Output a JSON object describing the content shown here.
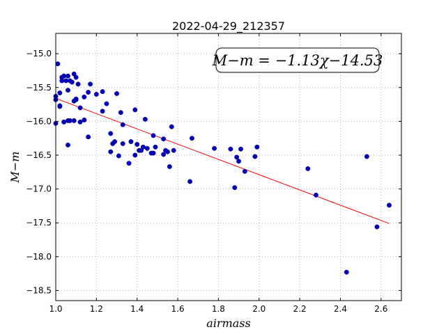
{
  "chart_data": {
    "type": "scatter",
    "title": "2022-04-29_212357",
    "xlabel": "airmass",
    "ylabel": "M−m",
    "xlim": [
      1.0,
      2.7
    ],
    "ylim": [
      -18.65,
      -14.7
    ],
    "y_inverted": true,
    "grid": true,
    "x_ticks": [
      1.0,
      1.2,
      1.4,
      1.6,
      1.8,
      2.0,
      2.2,
      2.4,
      2.6
    ],
    "x_tick_labels": [
      "1.0",
      "1.2",
      "1.4",
      "1.6",
      "1.8",
      "2.0",
      "2.2",
      "2.4",
      "2.6"
    ],
    "y_ticks": [
      -15.0,
      -15.5,
      -16.0,
      -16.5,
      -17.0,
      -17.5,
      -18.0,
      -18.5
    ],
    "y_tick_labels": [
      "−15.0",
      "−15.5",
      "−16.0",
      "−16.5",
      "−17.0",
      "−17.5",
      "−18.0",
      "−18.5"
    ],
    "annotation": "M−m = −1.13χ−14.53",
    "annotation_position": "top-right",
    "colors": {
      "points": "#0000bf",
      "fit": "#ff0000",
      "grid": "#b0b0b0"
    },
    "series": [
      {
        "kind": "points",
        "x": [
          1.0,
          1.0,
          1.0,
          1.01,
          1.02,
          1.03,
          1.02,
          1.02,
          1.03,
          1.04,
          1.04,
          1.05,
          1.06,
          1.06,
          1.07,
          1.08,
          1.09,
          1.1,
          1.1,
          1.11,
          1.06,
          1.09,
          1.1,
          1.12,
          1.14,
          1.17,
          1.16,
          1.02,
          1.04,
          1.07,
          1.09,
          1.12,
          1.14,
          1.06,
          1.16,
          1.2,
          1.23,
          1.25,
          1.23,
          1.3,
          1.32,
          1.27,
          1.28,
          1.27,
          1.29,
          1.31,
          1.33,
          1.33,
          1.36,
          1.37,
          1.39,
          1.39,
          1.4,
          1.41,
          1.42,
          1.43,
          1.44,
          1.45,
          1.47,
          1.48,
          1.48,
          1.49,
          1.53,
          1.53,
          1.55,
          1.56,
          1.54,
          1.57,
          1.58,
          1.66,
          1.67,
          1.78,
          1.86,
          1.88,
          1.89,
          1.9,
          1.91,
          1.93,
          1.98,
          1.99,
          2.24,
          2.28,
          2.43,
          2.53,
          2.58,
          2.64
        ],
        "y": [
          -15.68,
          -15.63,
          -16.03,
          -15.15,
          -15.58,
          -15.4,
          -15.78,
          -15.78,
          -15.35,
          -15.33,
          -16.01,
          -15.4,
          -15.54,
          -15.33,
          -15.4,
          -15.42,
          -15.3,
          -15.35,
          -15.68,
          -15.45,
          -15.99,
          -15.99,
          -15.67,
          -16.01,
          -15.64,
          -15.45,
          -15.57,
          -15.77,
          -15.33,
          -15.99,
          -15.7,
          -15.8,
          -15.98,
          -16.35,
          -16.23,
          -15.6,
          -15.56,
          -15.74,
          -15.85,
          -15.59,
          -15.87,
          -16.18,
          -16.33,
          -16.45,
          -16.3,
          -16.51,
          -16.05,
          -16.33,
          -16.62,
          -16.3,
          -16.5,
          -15.83,
          -16.34,
          -16.43,
          -16.43,
          -16.38,
          -15.97,
          -16.4,
          -16.47,
          -16.47,
          -16.21,
          -16.38,
          -16.26,
          -16.49,
          -16.45,
          -16.67,
          -16.43,
          -16.08,
          -16.43,
          -16.89,
          -16.25,
          -16.4,
          -16.41,
          -16.98,
          -16.53,
          -16.59,
          -16.41,
          -16.74,
          -16.52,
          -16.38,
          -16.7,
          -17.09,
          -18.23,
          -16.52,
          -17.56,
          -17.24
        ]
      },
      {
        "kind": "fit-line",
        "x": [
          1.0,
          2.64
        ],
        "y": [
          -15.66,
          -17.51
        ]
      }
    ]
  }
}
